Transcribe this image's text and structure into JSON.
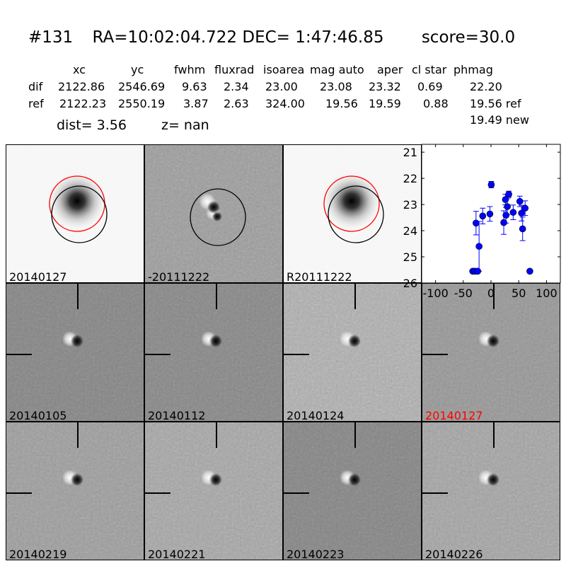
{
  "header": {
    "id": "#131",
    "coords": "RA=10:02:04.722 DEC= 1:47:46.85",
    "score": "score=30.0"
  },
  "table": {
    "columns": [
      "xc",
      "yc",
      "fwhm",
      "fluxrad",
      "isoarea",
      "mag auto",
      "aper",
      "cl star",
      "phmag"
    ],
    "rows": [
      {
        "label": "dif",
        "values": [
          "2122.86",
          "2546.69",
          "9.63",
          "2.34",
          "23.00",
          "23.08",
          "23.32",
          "0.69",
          "22.20"
        ]
      },
      {
        "label": "ref",
        "values": [
          "2122.23",
          "2550.19",
          "3.87",
          "2.63",
          "324.00",
          "19.56",
          "19.59",
          "0.88",
          "19.56 ref"
        ]
      }
    ],
    "phmag_new": "19.49 new",
    "dist": "dist=  3.56",
    "z": "z=   nan"
  },
  "panels": [
    {
      "label": "20140127",
      "type": "new",
      "bg": "#f7f7f7"
    },
    {
      "label": "-20111222",
      "type": "diff",
      "bg": "#a2a2a2"
    },
    {
      "label": "R20111222",
      "type": "ref",
      "bg": "#f7f7f7"
    },
    {
      "label": "20140105",
      "type": "stamp",
      "bg": "#8c8c8c"
    },
    {
      "label": "20140112",
      "type": "stamp",
      "bg": "#8e8e8e"
    },
    {
      "label": "20140124",
      "type": "stamp",
      "bg": "#b2b2b2"
    },
    {
      "label": "20140127",
      "type": "stamp",
      "bg": "#9c9c9c",
      "label_color": "#ff0000"
    },
    {
      "label": "20140219",
      "type": "stamp",
      "bg": "#a2a2a2"
    },
    {
      "label": "20140221",
      "type": "stamp",
      "bg": "#aaaaaa"
    },
    {
      "label": "20140223",
      "type": "stamp",
      "bg": "#8c8c8c"
    },
    {
      "label": "20140226",
      "type": "stamp",
      "bg": "#a8a8a8"
    }
  ],
  "chart_data": {
    "type": "scatter",
    "title": "",
    "xlabel": "",
    "ylabel": "",
    "xlim": [
      -125,
      125
    ],
    "ylim": [
      26,
      20.7
    ],
    "y_inverted": true,
    "xticks": [
      -100,
      -50,
      0,
      50,
      100
    ],
    "yticks": [
      21,
      22,
      23,
      24,
      25,
      26
    ],
    "grid": false,
    "color": "#0000ff",
    "points": [
      {
        "x": -33,
        "y": 25.55,
        "err": 0.05
      },
      {
        "x": -29,
        "y": 25.55,
        "err": 0.05
      },
      {
        "x": -24,
        "y": 25.55,
        "err": 0.05
      },
      {
        "x": -27,
        "y": 23.71,
        "err": 0.45
      },
      {
        "x": -21.5,
        "y": 24.6,
        "err": 0.95
      },
      {
        "x": -15,
        "y": 23.44,
        "err": 0.3
      },
      {
        "x": -2,
        "y": 23.36,
        "err": 0.28
      },
      {
        "x": 0.5,
        "y": 22.24,
        "err": 0.12
      },
      {
        "x": 23,
        "y": 23.69,
        "err": 0.45
      },
      {
        "x": 26,
        "y": 22.81,
        "err": 0.2
      },
      {
        "x": 27,
        "y": 23.41,
        "err": 0.3
      },
      {
        "x": 29.5,
        "y": 23.08,
        "err": 0.3
      },
      {
        "x": 32,
        "y": 22.61,
        "err": 0.12
      },
      {
        "x": 40,
        "y": 23.3,
        "err": 0.28
      },
      {
        "x": 52,
        "y": 22.88,
        "err": 0.2
      },
      {
        "x": 55,
        "y": 23.33,
        "err": 0.3
      },
      {
        "x": 57,
        "y": 23.93,
        "err": 0.45
      },
      {
        "x": 61.5,
        "y": 23.14,
        "err": 0.28
      },
      {
        "x": 70,
        "y": 25.55,
        "err": 0.05
      }
    ]
  }
}
